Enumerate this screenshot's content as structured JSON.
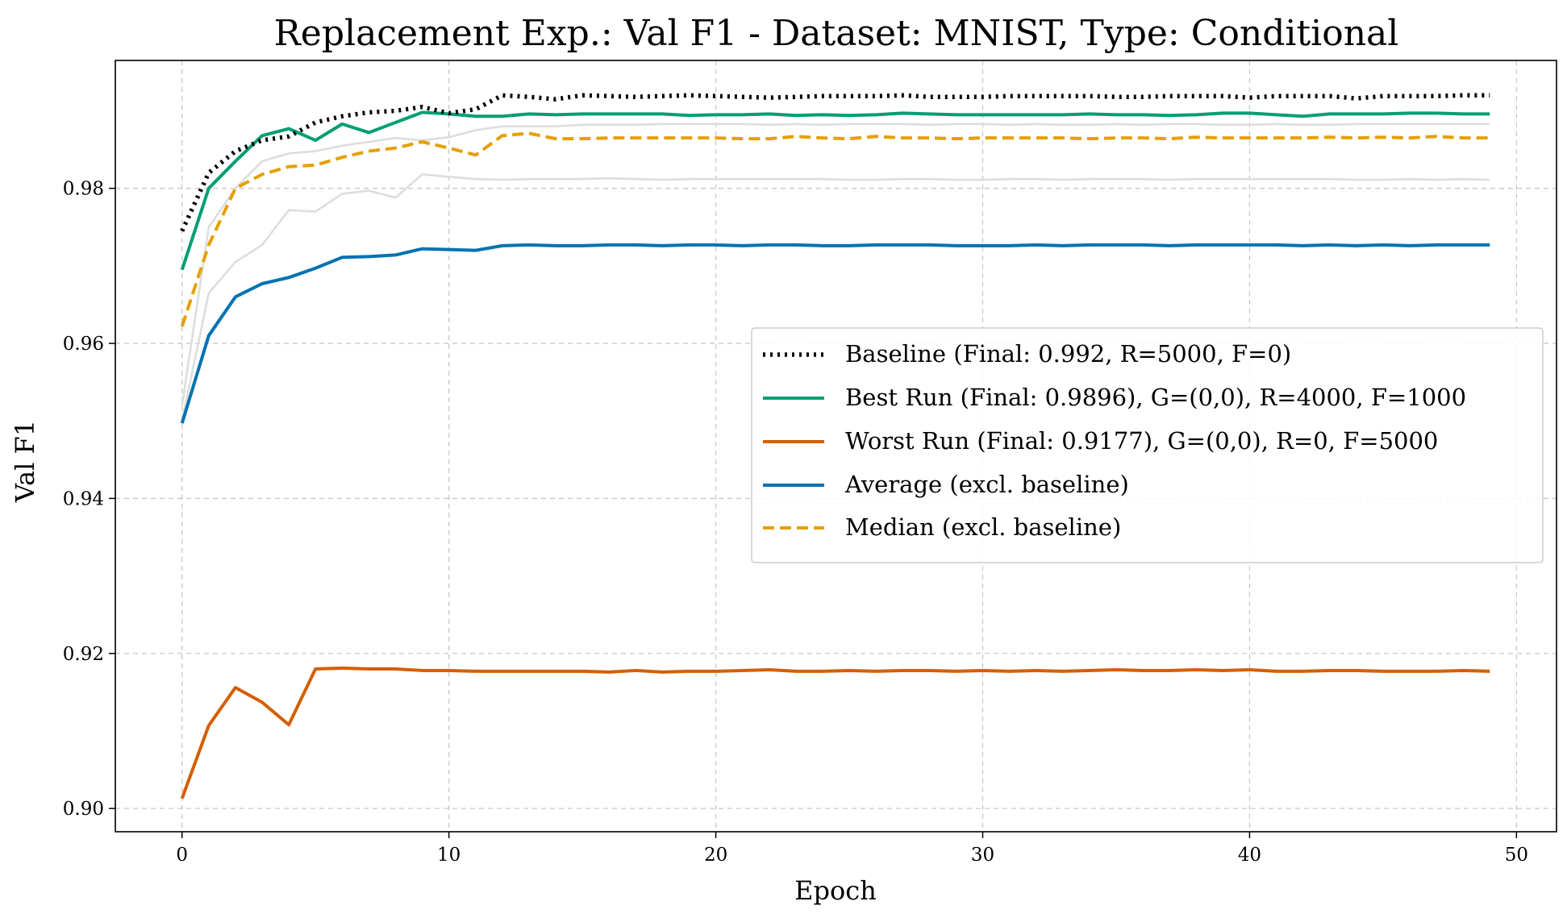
{
  "chart_data": {
    "type": "line",
    "title": "Replacement Exp.: Val F1 - Dataset: MNIST, Type: Conditional",
    "xlabel": "Epoch",
    "ylabel": "Val F1",
    "xlim": [
      -2.5,
      51.5
    ],
    "ylim": [
      0.897,
      0.9965
    ],
    "xticks": [
      0,
      10,
      20,
      30,
      40,
      50
    ],
    "xtick_labels": [
      "0",
      "10",
      "20",
      "30",
      "40",
      "50"
    ],
    "yticks": [
      0.9,
      0.92,
      0.94,
      0.96,
      0.98
    ],
    "ytick_labels": [
      "0.90",
      "0.92",
      "0.94",
      "0.96",
      "0.98"
    ],
    "grid": true,
    "legend_position": "center-right",
    "background_series": [
      {
        "color": "#dddddd",
        "values": [
          0.952,
          0.975,
          0.98,
          0.9835,
          0.9845,
          0.9848,
          0.9855,
          0.986,
          0.9865,
          0.9862,
          0.9866,
          0.9875,
          0.988,
          0.988,
          0.988,
          0.9882,
          0.9882,
          0.9882,
          0.9883,
          0.9883,
          0.9883,
          0.9883,
          0.9882,
          0.9883,
          0.9882,
          0.9883,
          0.9883,
          0.9883,
          0.9882,
          0.9883,
          0.9883,
          0.9882,
          0.9883,
          0.9882,
          0.9882,
          0.9883,
          0.9882,
          0.9883,
          0.9883,
          0.9882,
          0.9882,
          0.9883,
          0.9882,
          0.9882,
          0.9883,
          0.9883,
          0.9883,
          0.9883,
          0.9883,
          0.9883
        ]
      },
      {
        "color": "#dddddd",
        "values": [
          0.95,
          0.9665,
          0.9705,
          0.9727,
          0.9772,
          0.977,
          0.9793,
          0.9797,
          0.9788,
          0.9818,
          0.9815,
          0.9812,
          0.9811,
          0.9812,
          0.9812,
          0.9812,
          0.9813,
          0.9812,
          0.9811,
          0.9812,
          0.9812,
          0.9812,
          0.9812,
          0.9812,
          0.9812,
          0.9811,
          0.9811,
          0.9812,
          0.9812,
          0.9811,
          0.9811,
          0.9812,
          0.9812,
          0.9811,
          0.9812,
          0.9812,
          0.9812,
          0.9811,
          0.9812,
          0.9812,
          0.9812,
          0.9812,
          0.9812,
          0.9812,
          0.9811,
          0.9811,
          0.9812,
          0.9811,
          0.9812,
          0.9811
        ]
      }
    ],
    "series": [
      {
        "name": "Baseline (Final: 0.992, R=5000, F=0)",
        "color": "#000000",
        "style": "dotted",
        "width": 5.5,
        "values": [
          0.9745,
          0.982,
          0.9848,
          0.9862,
          0.9867,
          0.9885,
          0.9893,
          0.9898,
          0.99,
          0.9905,
          0.9897,
          0.9902,
          0.992,
          0.9918,
          0.9915,
          0.992,
          0.9919,
          0.9918,
          0.9919,
          0.992,
          0.9919,
          0.9918,
          0.9917,
          0.9918,
          0.9919,
          0.9919,
          0.9919,
          0.992,
          0.9918,
          0.9918,
          0.9918,
          0.9919,
          0.9919,
          0.9919,
          0.9919,
          0.9918,
          0.9918,
          0.9919,
          0.9919,
          0.9919,
          0.9917,
          0.9919,
          0.9919,
          0.9919,
          0.9916,
          0.9919,
          0.9919,
          0.9919,
          0.992,
          0.992
        ]
      },
      {
        "name": "Best Run (Final: 0.9896), G=(0,0), R=4000, F=1000",
        "color": "#009e73",
        "style": "solid",
        "width": 4,
        "values": [
          0.9695,
          0.98,
          0.9835,
          0.9868,
          0.9877,
          0.9862,
          0.9883,
          0.9872,
          0.9885,
          0.9898,
          0.9896,
          0.9893,
          0.9893,
          0.9896,
          0.9895,
          0.9896,
          0.9896,
          0.9896,
          0.9896,
          0.9894,
          0.9895,
          0.9895,
          0.9896,
          0.9894,
          0.9895,
          0.9894,
          0.9895,
          0.9897,
          0.9896,
          0.9895,
          0.9895,
          0.9895,
          0.9895,
          0.9895,
          0.9896,
          0.9895,
          0.9895,
          0.9894,
          0.9895,
          0.9897,
          0.9897,
          0.9895,
          0.9893,
          0.9896,
          0.9896,
          0.9896,
          0.9897,
          0.9897,
          0.9896,
          0.9896
        ]
      },
      {
        "name": "Worst Run (Final: 0.9177), G=(0,0), R=0, F=5000",
        "color": "#d55e00",
        "style": "solid",
        "width": 4,
        "values": [
          0.9013,
          0.9107,
          0.9156,
          0.9137,
          0.9108,
          0.918,
          0.9181,
          0.918,
          0.918,
          0.9178,
          0.9178,
          0.9177,
          0.9177,
          0.9177,
          0.9177,
          0.9177,
          0.9176,
          0.9178,
          0.9176,
          0.9177,
          0.9177,
          0.9178,
          0.9179,
          0.9177,
          0.9177,
          0.9178,
          0.9177,
          0.9178,
          0.9178,
          0.9177,
          0.9178,
          0.9177,
          0.9178,
          0.9177,
          0.9178,
          0.9179,
          0.9178,
          0.9178,
          0.9179,
          0.9178,
          0.9179,
          0.9177,
          0.9177,
          0.9178,
          0.9178,
          0.9177,
          0.9177,
          0.9177,
          0.9178,
          0.9177
        ]
      },
      {
        "name": "Average (excl. baseline)",
        "color": "#0072b2",
        "style": "solid",
        "width": 4,
        "values": [
          0.9497,
          0.961,
          0.966,
          0.9677,
          0.9685,
          0.9697,
          0.9711,
          0.9712,
          0.9714,
          0.9722,
          0.9721,
          0.972,
          0.9726,
          0.9727,
          0.9726,
          0.9726,
          0.9727,
          0.9727,
          0.9726,
          0.9727,
          0.9727,
          0.9726,
          0.9727,
          0.9727,
          0.9726,
          0.9726,
          0.9727,
          0.9727,
          0.9727,
          0.9726,
          0.9726,
          0.9726,
          0.9727,
          0.9726,
          0.9727,
          0.9727,
          0.9727,
          0.9726,
          0.9727,
          0.9727,
          0.9727,
          0.9727,
          0.9726,
          0.9727,
          0.9726,
          0.9727,
          0.9726,
          0.9727,
          0.9727,
          0.9727
        ]
      },
      {
        "name": "Median (excl. baseline)",
        "color": "#e69f00",
        "style": "dashed",
        "width": 4,
        "values": [
          0.9622,
          0.9727,
          0.98,
          0.9818,
          0.9828,
          0.983,
          0.984,
          0.9848,
          0.9852,
          0.986,
          0.9852,
          0.9843,
          0.9868,
          0.9871,
          0.9864,
          0.9864,
          0.9865,
          0.9865,
          0.9865,
          0.9865,
          0.9865,
          0.9864,
          0.9864,
          0.9867,
          0.9865,
          0.9864,
          0.9867,
          0.9865,
          0.9865,
          0.9864,
          0.9865,
          0.9865,
          0.9865,
          0.9865,
          0.9864,
          0.9865,
          0.9865,
          0.9864,
          0.9866,
          0.9865,
          0.9865,
          0.9865,
          0.9865,
          0.9866,
          0.9865,
          0.9866,
          0.9865,
          0.9867,
          0.9865,
          0.9865
        ]
      }
    ]
  }
}
